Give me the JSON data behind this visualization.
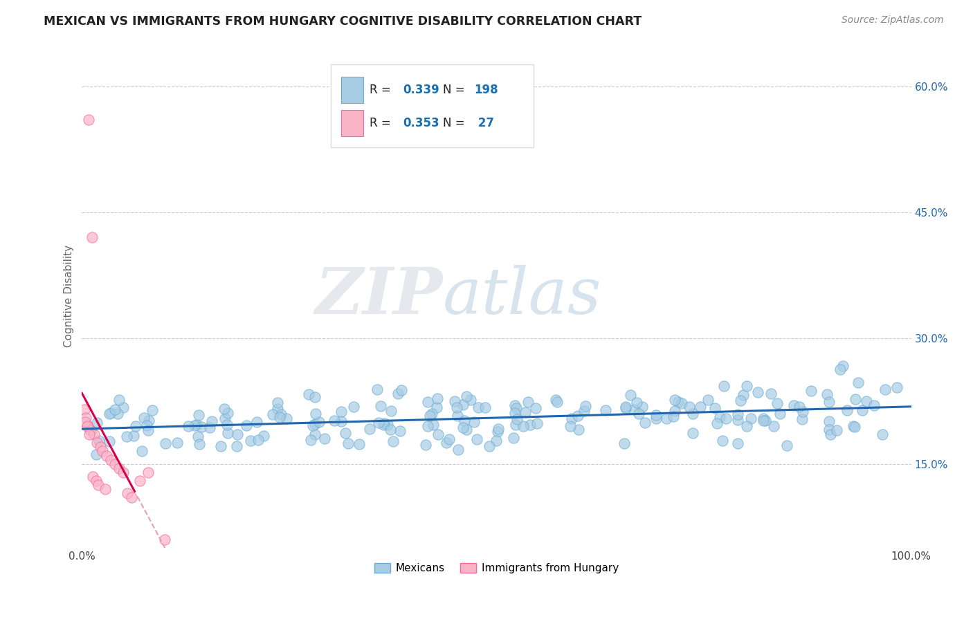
{
  "title": "MEXICAN VS IMMIGRANTS FROM HUNGARY COGNITIVE DISABILITY CORRELATION CHART",
  "source": "Source: ZipAtlas.com",
  "ylabel": "Cognitive Disability",
  "watermark_zip": "ZIP",
  "watermark_atlas": "atlas",
  "blue_R": 0.339,
  "blue_N": 198,
  "pink_R": 0.353,
  "pink_N": 27,
  "blue_color": "#a8cce4",
  "blue_edge_color": "#6aaed6",
  "pink_color": "#fbb4c6",
  "pink_edge_color": "#f768a1",
  "blue_line_color": "#2166ac",
  "pink_line_color": "#d6004c",
  "pink_dash_color": "#e8a0b4",
  "xlim": [
    0.0,
    1.0
  ],
  "ylim": [
    0.05,
    0.65
  ],
  "yticks": [
    0.15,
    0.3,
    0.45,
    0.6
  ],
  "ytick_labels": [
    "15.0%",
    "30.0%",
    "45.0%",
    "60.0%"
  ],
  "background_color": "#ffffff",
  "grid_color": "#cccccc",
  "legend_val_color": "#1a6faf",
  "title_color": "#222222",
  "source_color": "#888888",
  "ylabel_color": "#666666"
}
